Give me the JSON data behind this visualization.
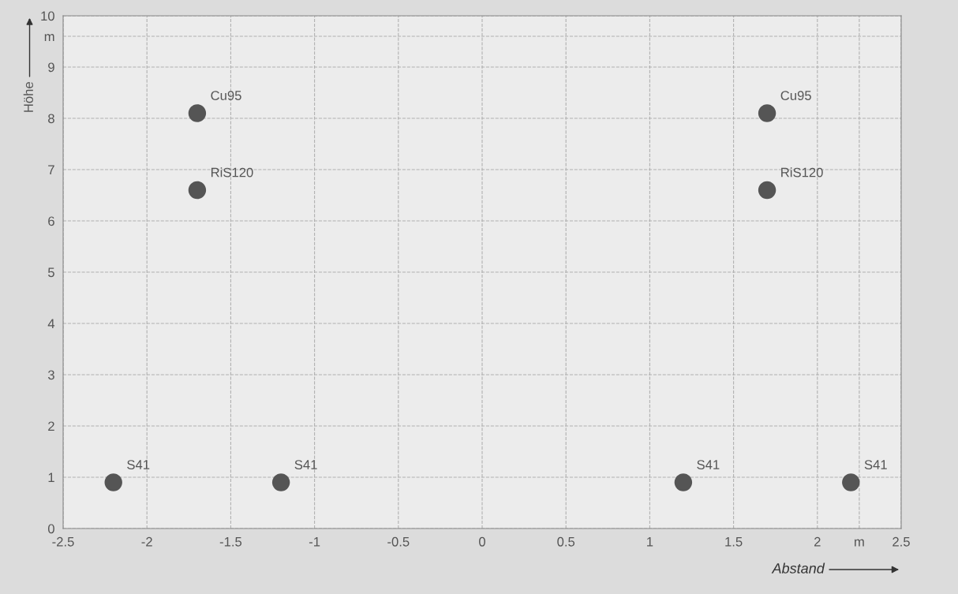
{
  "chart_data": {
    "type": "scatter",
    "xlabel": "Abstand",
    "ylabel": "Höhe",
    "x": [
      -2.2,
      -1.2,
      1.2,
      2.2,
      -1.7,
      1.7,
      -1.7,
      1.7
    ],
    "series": [
      {
        "color": "#555555",
        "values": [
          0.9,
          0.9,
          0.9,
          0.9,
          8.1,
          8.1,
          6.6,
          6.6
        ]
      }
    ],
    "annotations": [
      {
        "text": "S41",
        "x": -2.2,
        "y": 0.9
      },
      {
        "text": "S41",
        "x": -1.2,
        "y": 0.9
      },
      {
        "text": "S41",
        "x": 1.2,
        "y": 0.9
      },
      {
        "text": "S41",
        "x": 2.2,
        "y": 0.9
      },
      {
        "text": "Cu95",
        "x": -1.7,
        "y": 8.1
      },
      {
        "text": "Cu95",
        "x": 1.7,
        "y": 8.1
      },
      {
        "text": "RiS120",
        "x": -1.7,
        "y": 6.6
      },
      {
        "text": "RiS120",
        "x": 1.7,
        "y": 6.6
      }
    ],
    "xlim": [
      -2.5,
      2.5
    ],
    "ylim": [
      0,
      10
    ],
    "xticks": [
      -2.5,
      -2,
      -1.5,
      -1,
      -0.5,
      0,
      0.5,
      1,
      1.5,
      2,
      {
        "value": 2.25,
        "label": "m"
      },
      2.5
    ],
    "yticks": [
      0,
      1,
      2,
      3,
      4,
      5,
      6,
      7,
      8,
      9,
      {
        "value": 9.6,
        "label": "m"
      },
      10
    ],
    "grid": true,
    "marker": "circle"
  }
}
